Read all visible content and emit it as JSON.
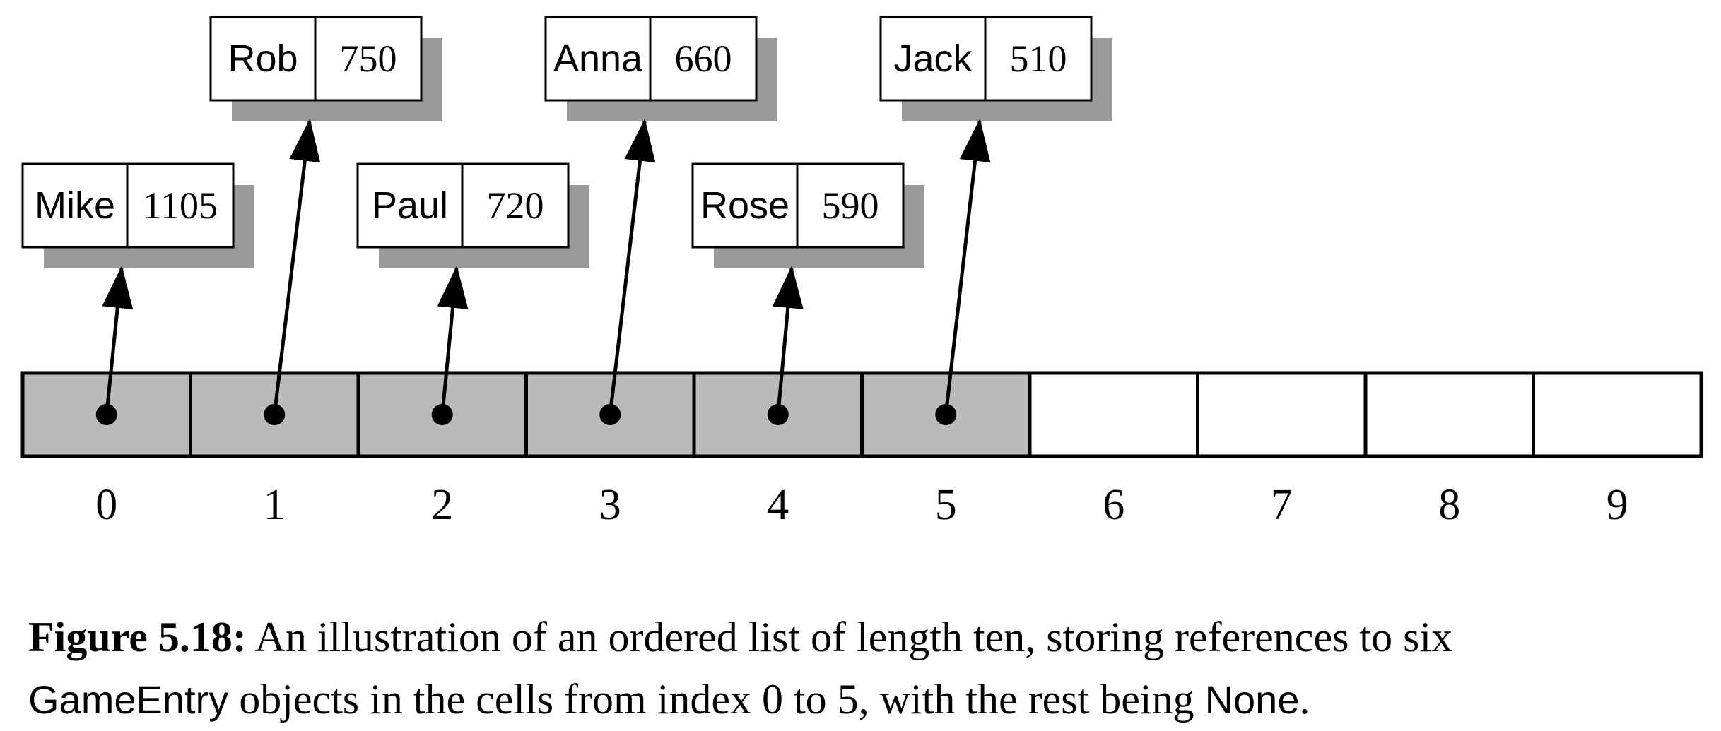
{
  "diagram": {
    "entries": [
      {
        "name": "Mike",
        "score": "1105",
        "index": 0
      },
      {
        "name": "Rob",
        "score": "750",
        "index": 1
      },
      {
        "name": "Paul",
        "score": "720",
        "index": 2
      },
      {
        "name": "Anna",
        "score": "660",
        "index": 3
      },
      {
        "name": "Rose",
        "score": "590",
        "index": 4
      },
      {
        "name": "Jack",
        "score": "510",
        "index": 5
      }
    ],
    "indices": [
      "0",
      "1",
      "2",
      "3",
      "4",
      "5",
      "6",
      "7",
      "8",
      "9"
    ],
    "filled_count": 6,
    "colors": {
      "filled_cell": "#bababa",
      "empty_cell": "#ffffff",
      "shadow": "#9a9a9a",
      "stroke": "#000000"
    }
  },
  "caption": {
    "label": "Figure 5.18:",
    "text_1": " An illustration of an ordered list of length ten, storing references to six",
    "code_1": "GameEntry",
    "text_2": " objects in the cells from index 0 to 5, with the rest being ",
    "code_2": "None",
    "text_3": "."
  }
}
